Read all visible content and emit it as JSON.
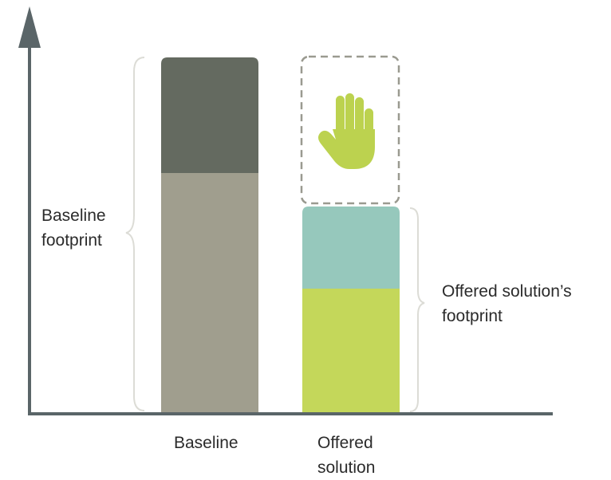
{
  "labels": {
    "baseline_footprint": [
      "Baseline",
      "footprint"
    ],
    "offered_footprint": [
      "Offered solution’s",
      "footprint"
    ],
    "categories": {
      "baseline": [
        "Baseline"
      ],
      "offered": [
        "Offered",
        "solution"
      ]
    }
  },
  "icons": {
    "reduction": "hand-icon",
    "axis": "arrow-up-icon"
  },
  "colors": {
    "axis": "#5a6568",
    "baseline_top": "#646a60",
    "baseline_bottom": "#a09e8e",
    "offered_top": "#96c8bc",
    "offered_bottom": "#c4d75a",
    "hand": "#bcd24f",
    "dashed_outline": "#9a9a90",
    "brace": "#dcdcd6"
  }
}
